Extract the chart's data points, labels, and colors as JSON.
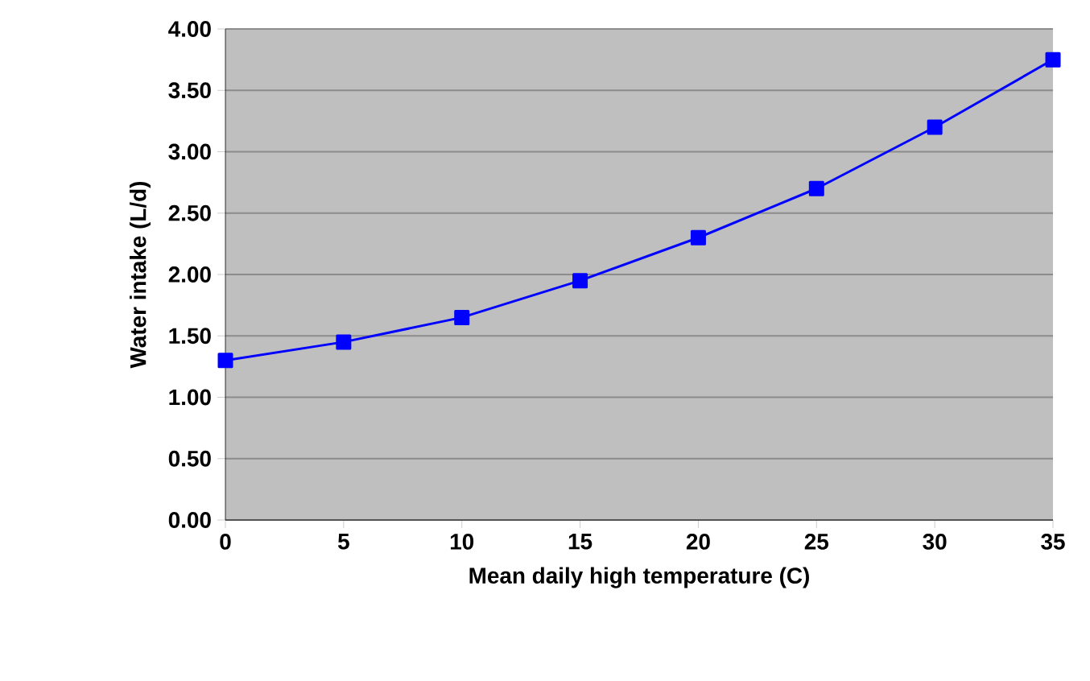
{
  "chart_data": {
    "type": "line",
    "xlabel": "Mean daily high temperature (C)",
    "ylabel": "Water intake (L/d)",
    "x": [
      0,
      5,
      10,
      15,
      20,
      25,
      30,
      35
    ],
    "series": [
      {
        "color": "#0000ff",
        "values": [
          1.3,
          1.45,
          1.65,
          1.95,
          2.3,
          2.7,
          3.2,
          3.75
        ]
      }
    ],
    "xlim": [
      0,
      35
    ],
    "ylim": [
      0,
      4
    ],
    "xticks": [
      0,
      5,
      10,
      15,
      20,
      25,
      30,
      35
    ],
    "yticks": [
      {
        "value": 0,
        "label": "0.00"
      },
      {
        "value": 0.5,
        "label": "0.50"
      },
      {
        "value": 1,
        "label": "1.00"
      },
      {
        "value": 1.5,
        "label": "1.50"
      },
      {
        "value": 2,
        "label": "2.00"
      },
      {
        "value": 2.5,
        "label": "2.50"
      },
      {
        "value": 3,
        "label": "3.00"
      },
      {
        "value": 3.5,
        "label": "3.50"
      },
      {
        "value": 4,
        "label": "4.00"
      }
    ],
    "grid": "y",
    "marker": "square",
    "line_style": "solid"
  }
}
